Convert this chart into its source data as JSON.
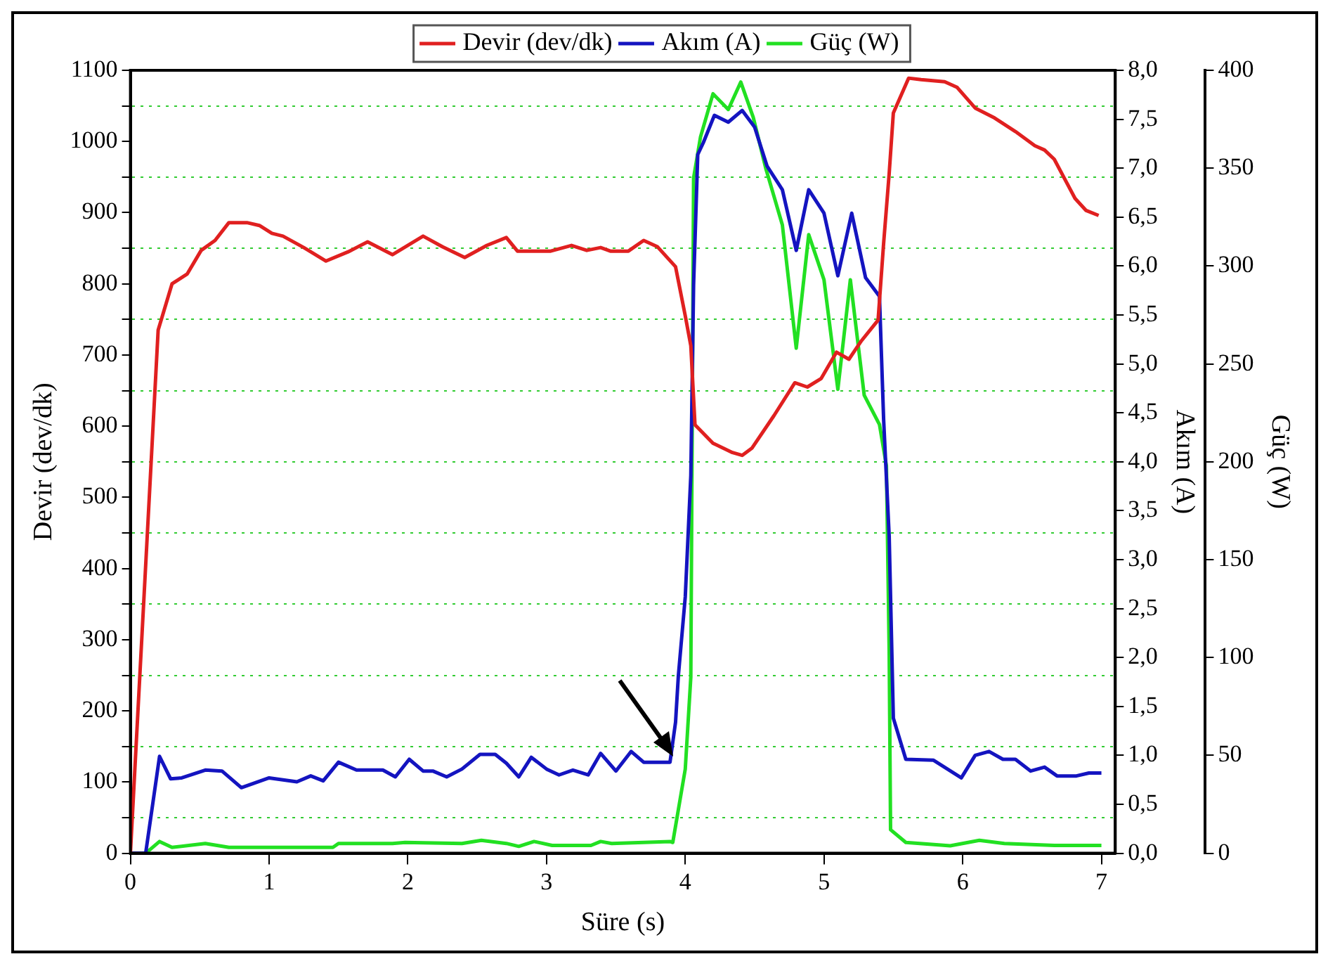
{
  "chart_data": {
    "type": "line",
    "xlabel": "Süre (s)",
    "ylabel": "Devir (dev/dk)",
    "y2label": "Akım (A)",
    "y3label": "Güç (W)",
    "legend": "top",
    "grid": "y",
    "marker": "none",
    "line_style": "solid",
    "xlim": [
      0,
      7.1
    ],
    "xticks": [
      0,
      1,
      2,
      3,
      4,
      5,
      6,
      7
    ],
    "ylim": [
      0,
      1100
    ],
    "yticks": [
      0,
      {
        "value": 50,
        "label": null
      },
      100,
      {
        "value": 150,
        "label": null
      },
      200,
      {
        "value": 250,
        "label": null
      },
      300,
      {
        "value": 350,
        "label": null
      },
      400,
      {
        "value": 450,
        "label": null
      },
      500,
      {
        "value": 550,
        "label": null
      },
      600,
      {
        "value": 650,
        "label": null
      },
      700,
      {
        "value": 750,
        "label": null
      },
      800,
      {
        "value": 850,
        "label": null
      },
      900,
      {
        "value": 950,
        "label": null
      },
      1000,
      {
        "value": 1050,
        "label": null
      },
      1100
    ],
    "y2lim": [
      0,
      8
    ],
    "y2ticks": [
      {
        "value": 0,
        "label": "0,0"
      },
      {
        "value": 0.5,
        "label": "0,5"
      },
      {
        "value": 1,
        "label": "1,0"
      },
      {
        "value": 1.5,
        "label": "1,5"
      },
      {
        "value": 2,
        "label": "2,0"
      },
      {
        "value": 2.5,
        "label": "2,5"
      },
      {
        "value": 3,
        "label": "3,0"
      },
      {
        "value": 3.5,
        "label": "3,5"
      },
      {
        "value": 4,
        "label": "4,0"
      },
      {
        "value": 4.5,
        "label": "4,5"
      },
      {
        "value": 5,
        "label": "5,0"
      },
      {
        "value": 5.5,
        "label": "5,5"
      },
      {
        "value": 6,
        "label": "6,0"
      },
      {
        "value": 6.5,
        "label": "6,5"
      },
      {
        "value": 7,
        "label": "7,0"
      },
      {
        "value": 7.5,
        "label": "7,5"
      },
      {
        "value": 8,
        "label": "8,0"
      }
    ],
    "y3lim": [
      0,
      400
    ],
    "y3ticks": [
      0,
      50,
      100,
      150,
      200,
      250,
      300,
      350,
      400
    ],
    "series": [
      {
        "name": "Devir (dev/dk)",
        "color": "#e02020",
        "x": [
          0,
          0.2,
          0.3,
          0.41,
          0.51,
          0.61,
          0.71,
          0.84,
          0.93,
          1.02,
          1.1,
          1.25,
          1.41,
          1.57,
          1.71,
          1.89,
          2.11,
          2.25,
          2.41,
          2.57,
          2.71,
          2.79,
          3.03,
          3.18,
          3.29,
          3.39,
          3.46,
          3.59,
          3.7,
          3.8,
          3.93,
          4.0,
          4.04,
          4.07,
          4.2,
          4.34,
          4.41,
          4.48,
          4.64,
          4.79,
          4.88,
          4.98,
          5.09,
          5.18,
          5.27,
          5.39,
          5.43,
          5.47,
          5.5,
          5.61,
          5.7,
          5.87,
          5.96,
          6.09,
          6.23,
          6.38,
          6.52,
          6.59,
          6.66,
          6.81,
          6.89,
          6.98
        ],
        "values": [
          0,
          735,
          800,
          814,
          847,
          861,
          886,
          886,
          882,
          871,
          867,
          851,
          832,
          845,
          859,
          841,
          867,
          852,
          837,
          854,
          865,
          846,
          846,
          854,
          847,
          851,
          846,
          846,
          861,
          852,
          824,
          755,
          713,
          602,
          576,
          563,
          559,
          569,
          615,
          661,
          655,
          667,
          704,
          694,
          720,
          749,
          857,
          955,
          1040,
          1089,
          1087,
          1084,
          1076,
          1047,
          1033,
          1014,
          994,
          988,
          975,
          920,
          903,
          896
        ]
      },
      {
        "name": "Akım (A)",
        "color": "#1414c0",
        "axis": "y2",
        "x": [
          0,
          0.11,
          0.21,
          0.29,
          0.37,
          0.54,
          0.66,
          0.8,
          1.0,
          1.2,
          1.3,
          1.39,
          1.5,
          1.63,
          1.82,
          1.91,
          2.01,
          2.11,
          2.18,
          2.28,
          2.39,
          2.52,
          2.63,
          2.71,
          2.8,
          2.89,
          3.0,
          3.09,
          3.19,
          3.3,
          3.39,
          3.5,
          3.61,
          3.7,
          3.89,
          3.93,
          3.95,
          4.0,
          4.04,
          4.06,
          4.09,
          4.13,
          4.21,
          4.31,
          4.41,
          4.5,
          4.59,
          4.7,
          4.8,
          4.89,
          5.0,
          5.1,
          5.2,
          5.3,
          5.4,
          5.43,
          5.47,
          5.5,
          5.59,
          5.79,
          5.99,
          6.09,
          6.19,
          6.29,
          6.38,
          6.49,
          6.59,
          6.68,
          6.82,
          6.91,
          7.0
        ],
        "values": [
          0,
          0,
          0.99,
          0.76,
          0.77,
          0.85,
          0.84,
          0.67,
          0.77,
          0.73,
          0.79,
          0.74,
          0.93,
          0.85,
          0.85,
          0.78,
          0.96,
          0.84,
          0.84,
          0.78,
          0.86,
          1.01,
          1.01,
          0.92,
          0.78,
          0.98,
          0.86,
          0.8,
          0.85,
          0.8,
          1.02,
          0.84,
          1.04,
          0.93,
          0.93,
          1.34,
          1.81,
          2.62,
          3.86,
          5.81,
          7.14,
          7.26,
          7.54,
          7.47,
          7.59,
          7.42,
          7.02,
          6.78,
          6.16,
          6.78,
          6.54,
          5.9,
          6.54,
          5.88,
          5.69,
          4.43,
          3.24,
          1.38,
          0.96,
          0.95,
          0.77,
          1.0,
          1.04,
          0.96,
          0.96,
          0.84,
          0.88,
          0.79,
          0.79,
          0.82,
          0.82
        ]
      },
      {
        "name": "Güç (W)",
        "color": "#22e022",
        "axis": "y3",
        "x": [
          0,
          0.11,
          0.21,
          0.3,
          0.54,
          0.71,
          1.46,
          1.5,
          1.89,
          1.98,
          2.39,
          2.53,
          2.71,
          2.8,
          2.91,
          3.04,
          3.32,
          3.39,
          3.47,
          3.89,
          3.91,
          4.0,
          4.04,
          4.06,
          4.11,
          4.2,
          4.31,
          4.4,
          4.49,
          4.58,
          4.7,
          4.8,
          4.89,
          5.0,
          5.1,
          5.19,
          5.29,
          5.4,
          5.45,
          5.47,
          5.48,
          5.59,
          5.91,
          6.12,
          6.3,
          6.66,
          7.0
        ],
        "values": [
          0,
          0,
          6,
          3,
          5,
          3,
          3,
          5,
          5,
          5.5,
          5,
          6.6,
          5,
          3.5,
          6,
          4,
          4,
          6,
          5,
          6,
          5.5,
          43,
          90,
          345,
          366,
          388,
          380,
          394,
          376,
          350,
          321,
          258,
          316,
          293,
          237,
          293,
          234,
          219,
          198,
          103,
          12,
          5.5,
          3.8,
          6.6,
          5,
          4,
          4
        ]
      }
    ]
  }
}
